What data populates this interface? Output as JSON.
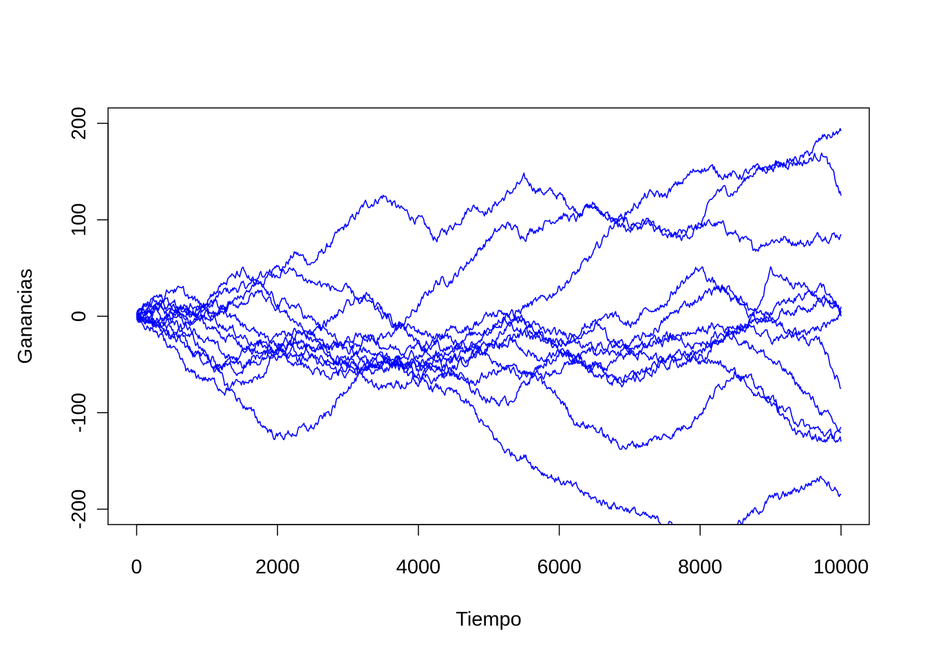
{
  "chart_data": {
    "type": "line",
    "title": "",
    "xlabel": "Tiempo",
    "ylabel": "Ganancias",
    "xlim": [
      0,
      10000
    ],
    "ylim": [
      -215,
      215
    ],
    "x_ticks": [
      0,
      2000,
      4000,
      6000,
      8000,
      10000
    ],
    "x_tick_labels": [
      "0",
      "2000",
      "4000",
      "6000",
      "8000",
      "10000"
    ],
    "y_ticks": [
      -200,
      -100,
      0,
      100,
      200
    ],
    "y_tick_labels": [
      "-200",
      "-100",
      "0",
      "100",
      "200"
    ],
    "grid": false,
    "legend": "none",
    "color": "#0000ff",
    "x": [
      0,
      250,
      500,
      750,
      1000,
      1250,
      1500,
      1750,
      2000,
      2250,
      2500,
      2750,
      3000,
      3250,
      3500,
      3750,
      4000,
      4250,
      4500,
      4750,
      5000,
      5250,
      5500,
      5750,
      6000,
      6250,
      6500,
      6750,
      7000,
      7250,
      7500,
      7750,
      8000,
      8250,
      8500,
      8750,
      9000,
      9250,
      9500,
      9750,
      10000
    ],
    "series": [
      {
        "values": [
          0,
          15,
          10,
          -5,
          10,
          25,
          30,
          35,
          45,
          65,
          55,
          75,
          95,
          115,
          125,
          110,
          100,
          80,
          95,
          115,
          110,
          125,
          140,
          130,
          125,
          110,
          115,
          100,
          95,
          100,
          80,
          85,
          95,
          95,
          85,
          70,
          80,
          80,
          75,
          85,
          85
        ]
      },
      {
        "values": [
          0,
          -5,
          -20,
          -35,
          -45,
          -55,
          -40,
          -30,
          -20,
          -15,
          -25,
          -30,
          -35,
          -20,
          -25,
          -10,
          10,
          35,
          40,
          60,
          80,
          95,
          85,
          95,
          105,
          100,
          115,
          100,
          90,
          95,
          85,
          80,
          95,
          130,
          130,
          150,
          155,
          160,
          160,
          170,
          125
        ]
      },
      {
        "values": [
          0,
          10,
          5,
          -10,
          -25,
          -40,
          -50,
          -40,
          -40,
          -45,
          -45,
          -55,
          -60,
          -55,
          -45,
          -50,
          -50,
          -40,
          -45,
          -35,
          -25,
          -10,
          10,
          15,
          30,
          45,
          65,
          95,
          110,
          125,
          125,
          140,
          155,
          150,
          145,
          150,
          155,
          160,
          165,
          185,
          192
        ]
      },
      {
        "values": [
          0,
          -10,
          -35,
          -60,
          -65,
          -75,
          -70,
          -65,
          -35,
          -30,
          -40,
          -50,
          -45,
          -35,
          -40,
          -55,
          -70,
          -75,
          -80,
          -95,
          -120,
          -140,
          -145,
          -160,
          -170,
          -180,
          -190,
          -195,
          -200,
          -210,
          -215,
          -220,
          -225,
          -225,
          -215,
          -205,
          -190,
          -185,
          -175,
          -165,
          -185
        ]
      },
      {
        "values": [
          0,
          5,
          -5,
          -20,
          -40,
          -70,
          -90,
          -110,
          -125,
          -120,
          -115,
          -100,
          -70,
          -60,
          -50,
          -45,
          -50,
          -55,
          -60,
          -70,
          -60,
          -55,
          -55,
          -70,
          -85,
          -110,
          -115,
          -130,
          -135,
          -130,
          -125,
          -115,
          -100,
          -75,
          -55,
          -70,
          -85,
          -100,
          -115,
          -120,
          -130
        ]
      },
      {
        "values": [
          0,
          10,
          30,
          20,
          5,
          -10,
          -20,
          -30,
          -35,
          -40,
          -35,
          -30,
          -25,
          -20,
          -30,
          -35,
          -40,
          -30,
          -35,
          -30,
          -15,
          0,
          -5,
          -20,
          -25,
          -30,
          -35,
          -40,
          -30,
          -20,
          -5,
          10,
          20,
          30,
          25,
          5,
          -5,
          -15,
          -25,
          -30,
          -75
        ]
      },
      {
        "values": [
          0,
          -15,
          -20,
          -10,
          0,
          5,
          15,
          25,
          10,
          -5,
          -20,
          -40,
          -50,
          -55,
          -50,
          -40,
          -30,
          -25,
          -15,
          -10,
          0,
          5,
          -5,
          -15,
          -20,
          -15,
          -5,
          -25,
          -35,
          -30,
          -25,
          -20,
          -15,
          -10,
          -15,
          -5,
          0,
          5,
          10,
          20,
          5
        ]
      },
      {
        "values": [
          0,
          20,
          15,
          0,
          20,
          35,
          45,
          30,
          15,
          10,
          -5,
          -20,
          -35,
          -45,
          -55,
          -50,
          -60,
          -65,
          -55,
          -40,
          -30,
          -25,
          -35,
          -45,
          -35,
          -40,
          -60,
          -70,
          -65,
          -55,
          -45,
          -40,
          -35,
          -25,
          -20,
          -30,
          -45,
          -60,
          -80,
          -100,
          -120
        ]
      },
      {
        "values": [
          0,
          -5,
          -15,
          -30,
          -45,
          -50,
          -55,
          -45,
          -30,
          -25,
          -30,
          -40,
          -50,
          -45,
          -40,
          -50,
          -55,
          -45,
          -30,
          -20,
          -10,
          -5,
          -15,
          -20,
          -30,
          -20,
          -10,
          0,
          -10,
          5,
          15,
          35,
          50,
          30,
          15,
          0,
          45,
          40,
          30,
          15,
          10
        ]
      },
      {
        "values": [
          0,
          5,
          10,
          5,
          -5,
          10,
          20,
          40,
          50,
          45,
          35,
          30,
          25,
          15,
          0,
          -10,
          -15,
          -20,
          -25,
          -35,
          -45,
          -55,
          -60,
          -65,
          -55,
          -45,
          -35,
          -30,
          -35,
          -40,
          -50,
          -40,
          -45,
          -25,
          -15,
          -5,
          5,
          15,
          25,
          30,
          0
        ]
      },
      {
        "values": [
          0,
          -10,
          -5,
          5,
          -10,
          -20,
          -30,
          -40,
          -35,
          -20,
          -15,
          -5,
          10,
          20,
          5,
          -10,
          -25,
          -45,
          -60,
          -75,
          -85,
          -90,
          -70,
          -50,
          -40,
          -45,
          -50,
          -60,
          -70,
          -60,
          -45,
          -50,
          -40,
          -50,
          -60,
          -75,
          -90,
          -110,
          -125,
          -130,
          -115
        ]
      },
      {
        "values": [
          0,
          -5,
          0,
          10,
          15,
          5,
          -10,
          -20,
          -30,
          -45,
          -55,
          -60,
          -55,
          -65,
          -75,
          -70,
          -60,
          -55,
          -45,
          -40,
          -30,
          -25,
          -20,
          -25,
          -35,
          -45,
          -55,
          -50,
          -40,
          -30,
          -20,
          -25,
          -30,
          -20,
          -10,
          -15,
          -25,
          -20,
          -15,
          -10,
          5
        ]
      }
    ]
  }
}
